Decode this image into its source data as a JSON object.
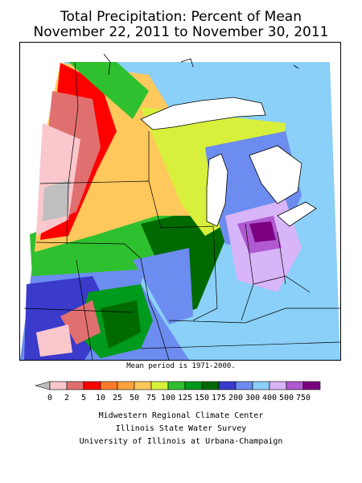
{
  "title": {
    "line1": "Total Precipitation: Percent of Mean",
    "line2": "November 22, 2011 to November 30, 2011"
  },
  "note": "Mean period is 1971-2000.",
  "legend": {
    "labels": [
      "0",
      "2",
      "5",
      "10",
      "25",
      "50",
      "75",
      "100",
      "125",
      "150",
      "175",
      "200",
      "300",
      "400",
      "500",
      "750"
    ],
    "colors": [
      "#f9c7cc",
      "#e07070",
      "#ff0000",
      "#ff7a2a",
      "#ffa23c",
      "#ffc85c",
      "#d8f03c",
      "#2fc02f",
      "#009a1c",
      "#006a00",
      "#3a3acb",
      "#6c8cf0",
      "#8ad0f8",
      "#d8b4f8",
      "#b059d0",
      "#7a0080"
    ],
    "below_zero_color": "#bfbfbf"
  },
  "credits": {
    "line1": "Midwestern Regional Climate Center",
    "line2": "Illinois State Water Survey",
    "line3": "University of Illinois at Urbana-Champaign"
  }
}
